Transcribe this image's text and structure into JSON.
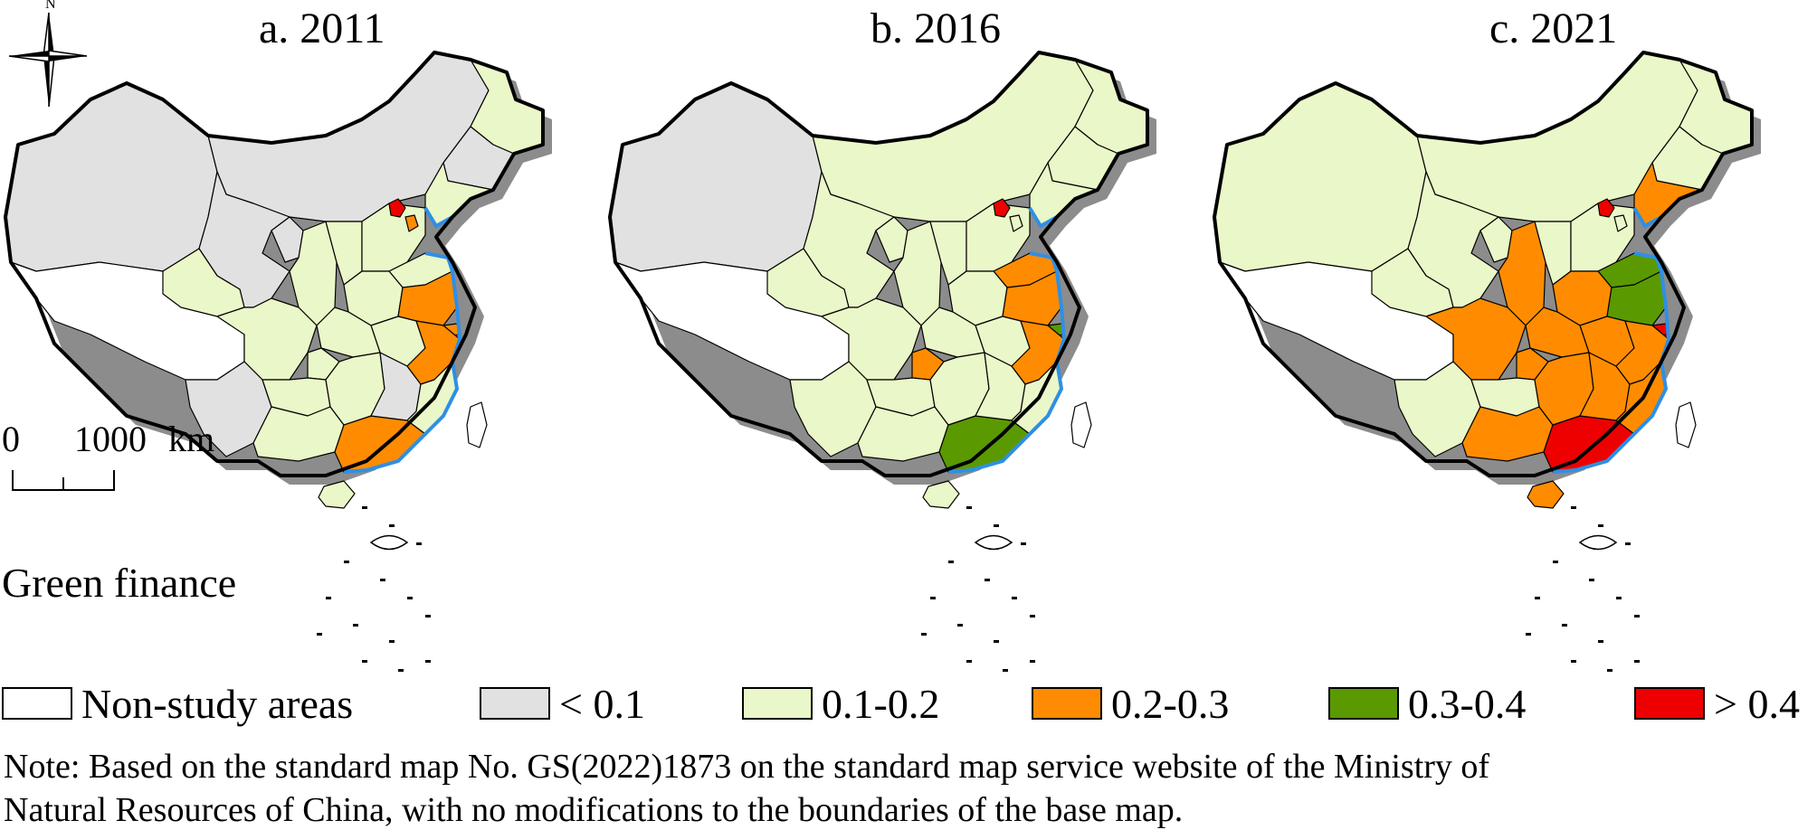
{
  "figure": {
    "legend_title": "Green finance",
    "note_line1": "Note: Based on the standard map No. GS(2022)1873 on the standard map service website of the Ministry of",
    "note_line2": "Natural Resources of China, with no modifications to the boundaries of the base map."
  },
  "north_arrow": {
    "label": "N",
    "icon": "compass-rose-icon"
  },
  "scale_bar": {
    "start": "0",
    "length": "1000",
    "unit": "km"
  },
  "legend": [
    {
      "label": "Non-study areas",
      "color": "#ffffff"
    },
    {
      "label": "< 0.1",
      "color": "#e1e1e1"
    },
    {
      "label": "0.1-0.2",
      "color": "#eaf7c8"
    },
    {
      "label": "0.2-0.3",
      "color": "#ff8c00"
    },
    {
      "label": "0.3-0.4",
      "color": "#5a9a00"
    },
    {
      "label": "> 0.4",
      "color": "#ee0000"
    }
  ],
  "colors": {
    "sea": "#2e8fe6",
    "shadow": "#8c8c8c",
    "border": "#000000"
  },
  "panels": [
    {
      "title": "a. 2011",
      "classes": {
        "xinjiang": "< 0.1",
        "tibet": "Non-study areas",
        "inner_mongolia": "< 0.1",
        "heilongjiang": "0.1-0.2",
        "jilin": "< 0.1",
        "liaoning": "0.1-0.2",
        "gansu": "< 0.1",
        "qinghai": "0.1-0.2",
        "ningxia": "< 0.1",
        "shaanxi": "0.1-0.2",
        "shanxi": "0.1-0.2",
        "hebei": "0.1-0.2",
        "beijing": "> 0.4",
        "tianjin": "0.2-0.3",
        "shandong": "0.1-0.2",
        "henan": "0.1-0.2",
        "jiangsu": "0.2-0.3",
        "shanghai": "0.2-0.3",
        "anhui": "0.1-0.2",
        "hubei": "0.1-0.2",
        "sichuan": "0.1-0.2",
        "chongqing": "0.1-0.2",
        "yunnan": "< 0.1",
        "guizhou": "0.1-0.2",
        "guangxi": "0.1-0.2",
        "guangdong": "0.2-0.3",
        "hunan": "0.1-0.2",
        "jiangxi": "< 0.1",
        "zhejiang": "0.2-0.3",
        "fujian": "0.1-0.2",
        "hainan": "0.1-0.2",
        "taiwan": "Non-study areas"
      }
    },
    {
      "title": "b. 2016",
      "classes": {
        "xinjiang": "< 0.1",
        "tibet": "Non-study areas",
        "inner_mongolia": "0.1-0.2",
        "heilongjiang": "0.1-0.2",
        "jilin": "0.1-0.2",
        "liaoning": "0.1-0.2",
        "gansu": "0.1-0.2",
        "qinghai": "0.1-0.2",
        "ningxia": "0.1-0.2",
        "shaanxi": "0.1-0.2",
        "shanxi": "0.1-0.2",
        "hebei": "0.1-0.2",
        "beijing": "> 0.4",
        "tianjin": "0.1-0.2",
        "shandong": "0.2-0.3",
        "henan": "0.1-0.2",
        "jiangsu": "0.2-0.3",
        "shanghai": "0.3-0.4",
        "anhui": "0.1-0.2",
        "hubei": "0.1-0.2",
        "sichuan": "0.1-0.2",
        "chongqing": "0.2-0.3",
        "yunnan": "0.1-0.2",
        "guizhou": "0.1-0.2",
        "guangxi": "0.1-0.2",
        "guangdong": "0.3-0.4",
        "hunan": "0.1-0.2",
        "jiangxi": "0.1-0.2",
        "zhejiang": "0.2-0.3",
        "fujian": "0.1-0.2",
        "hainan": "0.1-0.2",
        "taiwan": "Non-study areas"
      }
    },
    {
      "title": "c. 2021",
      "classes": {
        "xinjiang": "0.1-0.2",
        "tibet": "Non-study areas",
        "inner_mongolia": "0.1-0.2",
        "heilongjiang": "0.1-0.2",
        "jilin": "0.1-0.2",
        "liaoning": "0.2-0.3",
        "gansu": "0.1-0.2",
        "qinghai": "0.1-0.2",
        "ningxia": "0.1-0.2",
        "shaanxi": "0.2-0.3",
        "shanxi": "0.1-0.2",
        "hebei": "0.1-0.2",
        "beijing": "> 0.4",
        "tianjin": "0.1-0.2",
        "shandong": "0.3-0.4",
        "henan": "0.2-0.3",
        "jiangsu": "0.3-0.4",
        "shanghai": "> 0.4",
        "anhui": "0.2-0.3",
        "hubei": "0.2-0.3",
        "sichuan": "0.2-0.3",
        "chongqing": "0.2-0.3",
        "yunnan": "0.1-0.2",
        "guizhou": "0.1-0.2",
        "guangxi": "0.2-0.3",
        "guangdong": "> 0.4",
        "hunan": "0.2-0.3",
        "jiangxi": "0.2-0.3",
        "zhejiang": "0.2-0.3",
        "fujian": "0.2-0.3",
        "hainan": "0.2-0.3",
        "taiwan": "Non-study areas"
      }
    }
  ]
}
